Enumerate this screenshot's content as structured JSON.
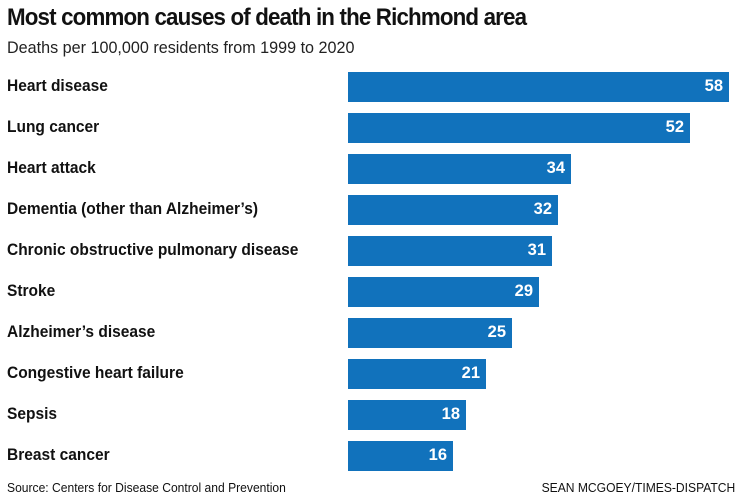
{
  "title": "Most common causes of death in the Richmond area",
  "subtitle": "Deaths per 100,000 residents from 1999 to 2020",
  "source": "Source: Centers for Disease Control and Prevention",
  "credit": "SEAN MCGOEY/TIMES-DISPATCH",
  "bar_color": "#1172bc",
  "rows": [
    {
      "label": "Heart disease",
      "value": "58"
    },
    {
      "label": "Lung cancer",
      "value": "52"
    },
    {
      "label": "Heart attack",
      "value": "34"
    },
    {
      "label": "Dementia (other than Alzheimer’s)",
      "value": "32"
    },
    {
      "label": "Chronic obstructive pulmonary disease",
      "value": "31"
    },
    {
      "label": "Stroke",
      "value": "29"
    },
    {
      "label": "Alzheimer’s disease",
      "value": "25"
    },
    {
      "label": "Congestive heart failure",
      "value": "21"
    },
    {
      "label": "Sepsis",
      "value": "18"
    },
    {
      "label": "Breast cancer",
      "value": "16"
    }
  ],
  "chart_data": {
    "type": "bar",
    "orientation": "horizontal",
    "title": "Most common causes of death in the Richmond area",
    "subtitle": "Deaths per 100,000 residents from 1999 to 2020",
    "categories": [
      "Heart disease",
      "Lung cancer",
      "Heart attack",
      "Dementia (other than Alzheimer’s)",
      "Chronic obstructive pulmonary disease",
      "Stroke",
      "Alzheimer’s disease",
      "Congestive heart failure",
      "Sepsis",
      "Breast cancer"
    ],
    "values": [
      58,
      52,
      34,
      32,
      31,
      29,
      25,
      21,
      18,
      16
    ],
    "xlabel": "",
    "ylabel": "",
    "data_labels": true,
    "grid": false,
    "legend": null,
    "source": "Source: Centers for Disease Control and Prevention",
    "credit": "SEAN MCGOEY/TIMES-DISPATCH"
  }
}
